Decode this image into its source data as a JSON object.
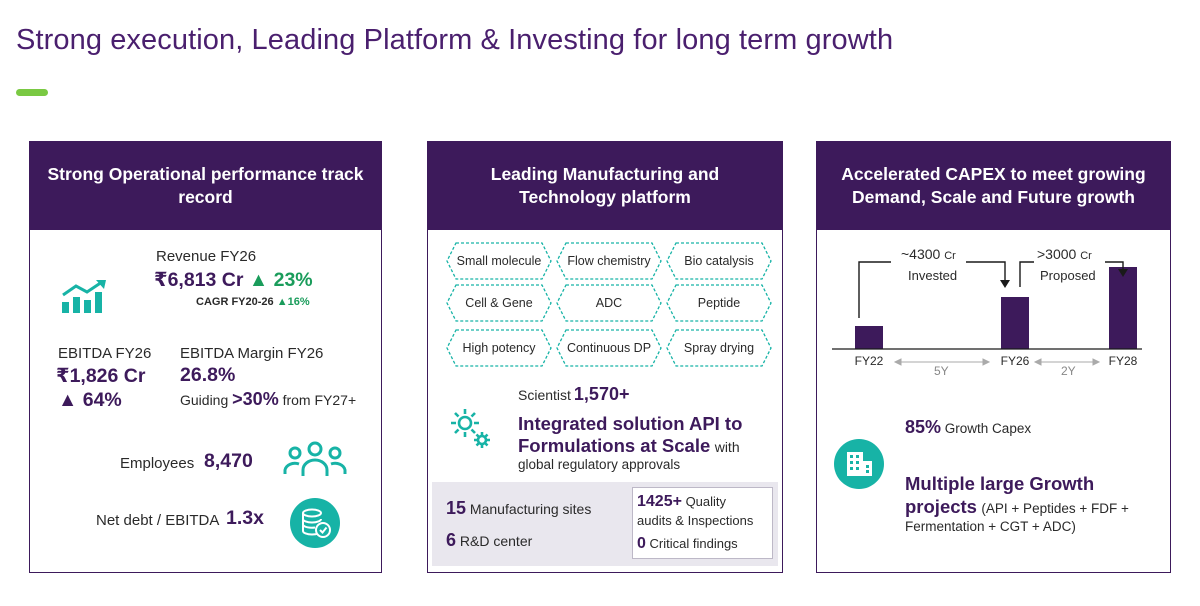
{
  "title": "Strong execution, Leading Platform & Investing for long term growth",
  "colors": {
    "primary": "#3d1a5b",
    "accent": "#7ac943",
    "teal": "#17b3a6",
    "up": "#1a9c5b"
  },
  "panel1": {
    "header": "Strong Operational performance track record",
    "icon": "growth-chart-icon",
    "revenue_label": "Revenue FY26",
    "revenue_value": "₹6,813 Cr",
    "revenue_growth": "▲ 23%",
    "cagr_label": "CAGR FY20-26",
    "cagr_value": "▲16%",
    "ebitda_label": "EBITDA FY26",
    "ebitda_value": "₹1,826 Cr",
    "ebitda_growth": "▲ 64%",
    "margin_label": "EBITDA Margin FY26",
    "margin_value": "26.8%",
    "guiding_prefix": "Guiding",
    "guiding_value": ">30%",
    "guiding_suffix": "from FY27+",
    "employees_label": "Employees",
    "employees_value": "8,470",
    "employees_icon": "people-group-icon",
    "netdebt_label": "Net debt / EBITDA",
    "netdebt_value": "1.3x",
    "netdebt_icon": "database-check-icon"
  },
  "panel2": {
    "header": "Leading Manufacturing and Technology platform",
    "capabilities": [
      "Small molecule",
      "Flow chemistry",
      "Bio catalysis",
      "Cell & Gene",
      "ADC",
      "Peptide",
      "High potency",
      "Continuous DP",
      "Spray drying"
    ],
    "scientist_label": "Scientist",
    "scientist_value": "1,570+",
    "gear_icon": "gears-icon",
    "integrated_line1": "Integrated solution API to",
    "integrated_line2_bold": "Formulations at Scale",
    "integrated_line2_rest": "with",
    "integrated_line3": "global regulatory approvals",
    "sites_value": "15",
    "sites_label": "Manufacturing sites",
    "rnd_value": "6",
    "rnd_label": "R&D center",
    "audits_value": "1425+",
    "audits_label1": "Quality",
    "audits_label2": "audits & Inspections",
    "findings_value": "0",
    "findings_label": "Critical findings"
  },
  "panel3": {
    "header": "Accelerated CAPEX to meet growing Demand, Scale and Future growth",
    "chart_data": {
      "type": "bar",
      "categories": [
        "FY22",
        "FY26",
        "FY28"
      ],
      "values": [
        23,
        52,
        82
      ],
      "annotations": [
        {
          "value": "~4300",
          "unit": "Cr",
          "label": "Invested"
        },
        {
          "value": ">3000",
          "unit": "Cr",
          "label": "Proposed"
        }
      ],
      "intervals": [
        "5Y",
        "2Y"
      ]
    },
    "growth_capex_value": "85%",
    "growth_capex_label": "Growth Capex",
    "building_icon": "building-icon",
    "projects_bold1": "Multiple large Growth",
    "projects_bold2": "projects",
    "projects_rest": "(API + Peptides + FDF +",
    "projects_line3": "Fermentation + CGT + ADC)"
  }
}
